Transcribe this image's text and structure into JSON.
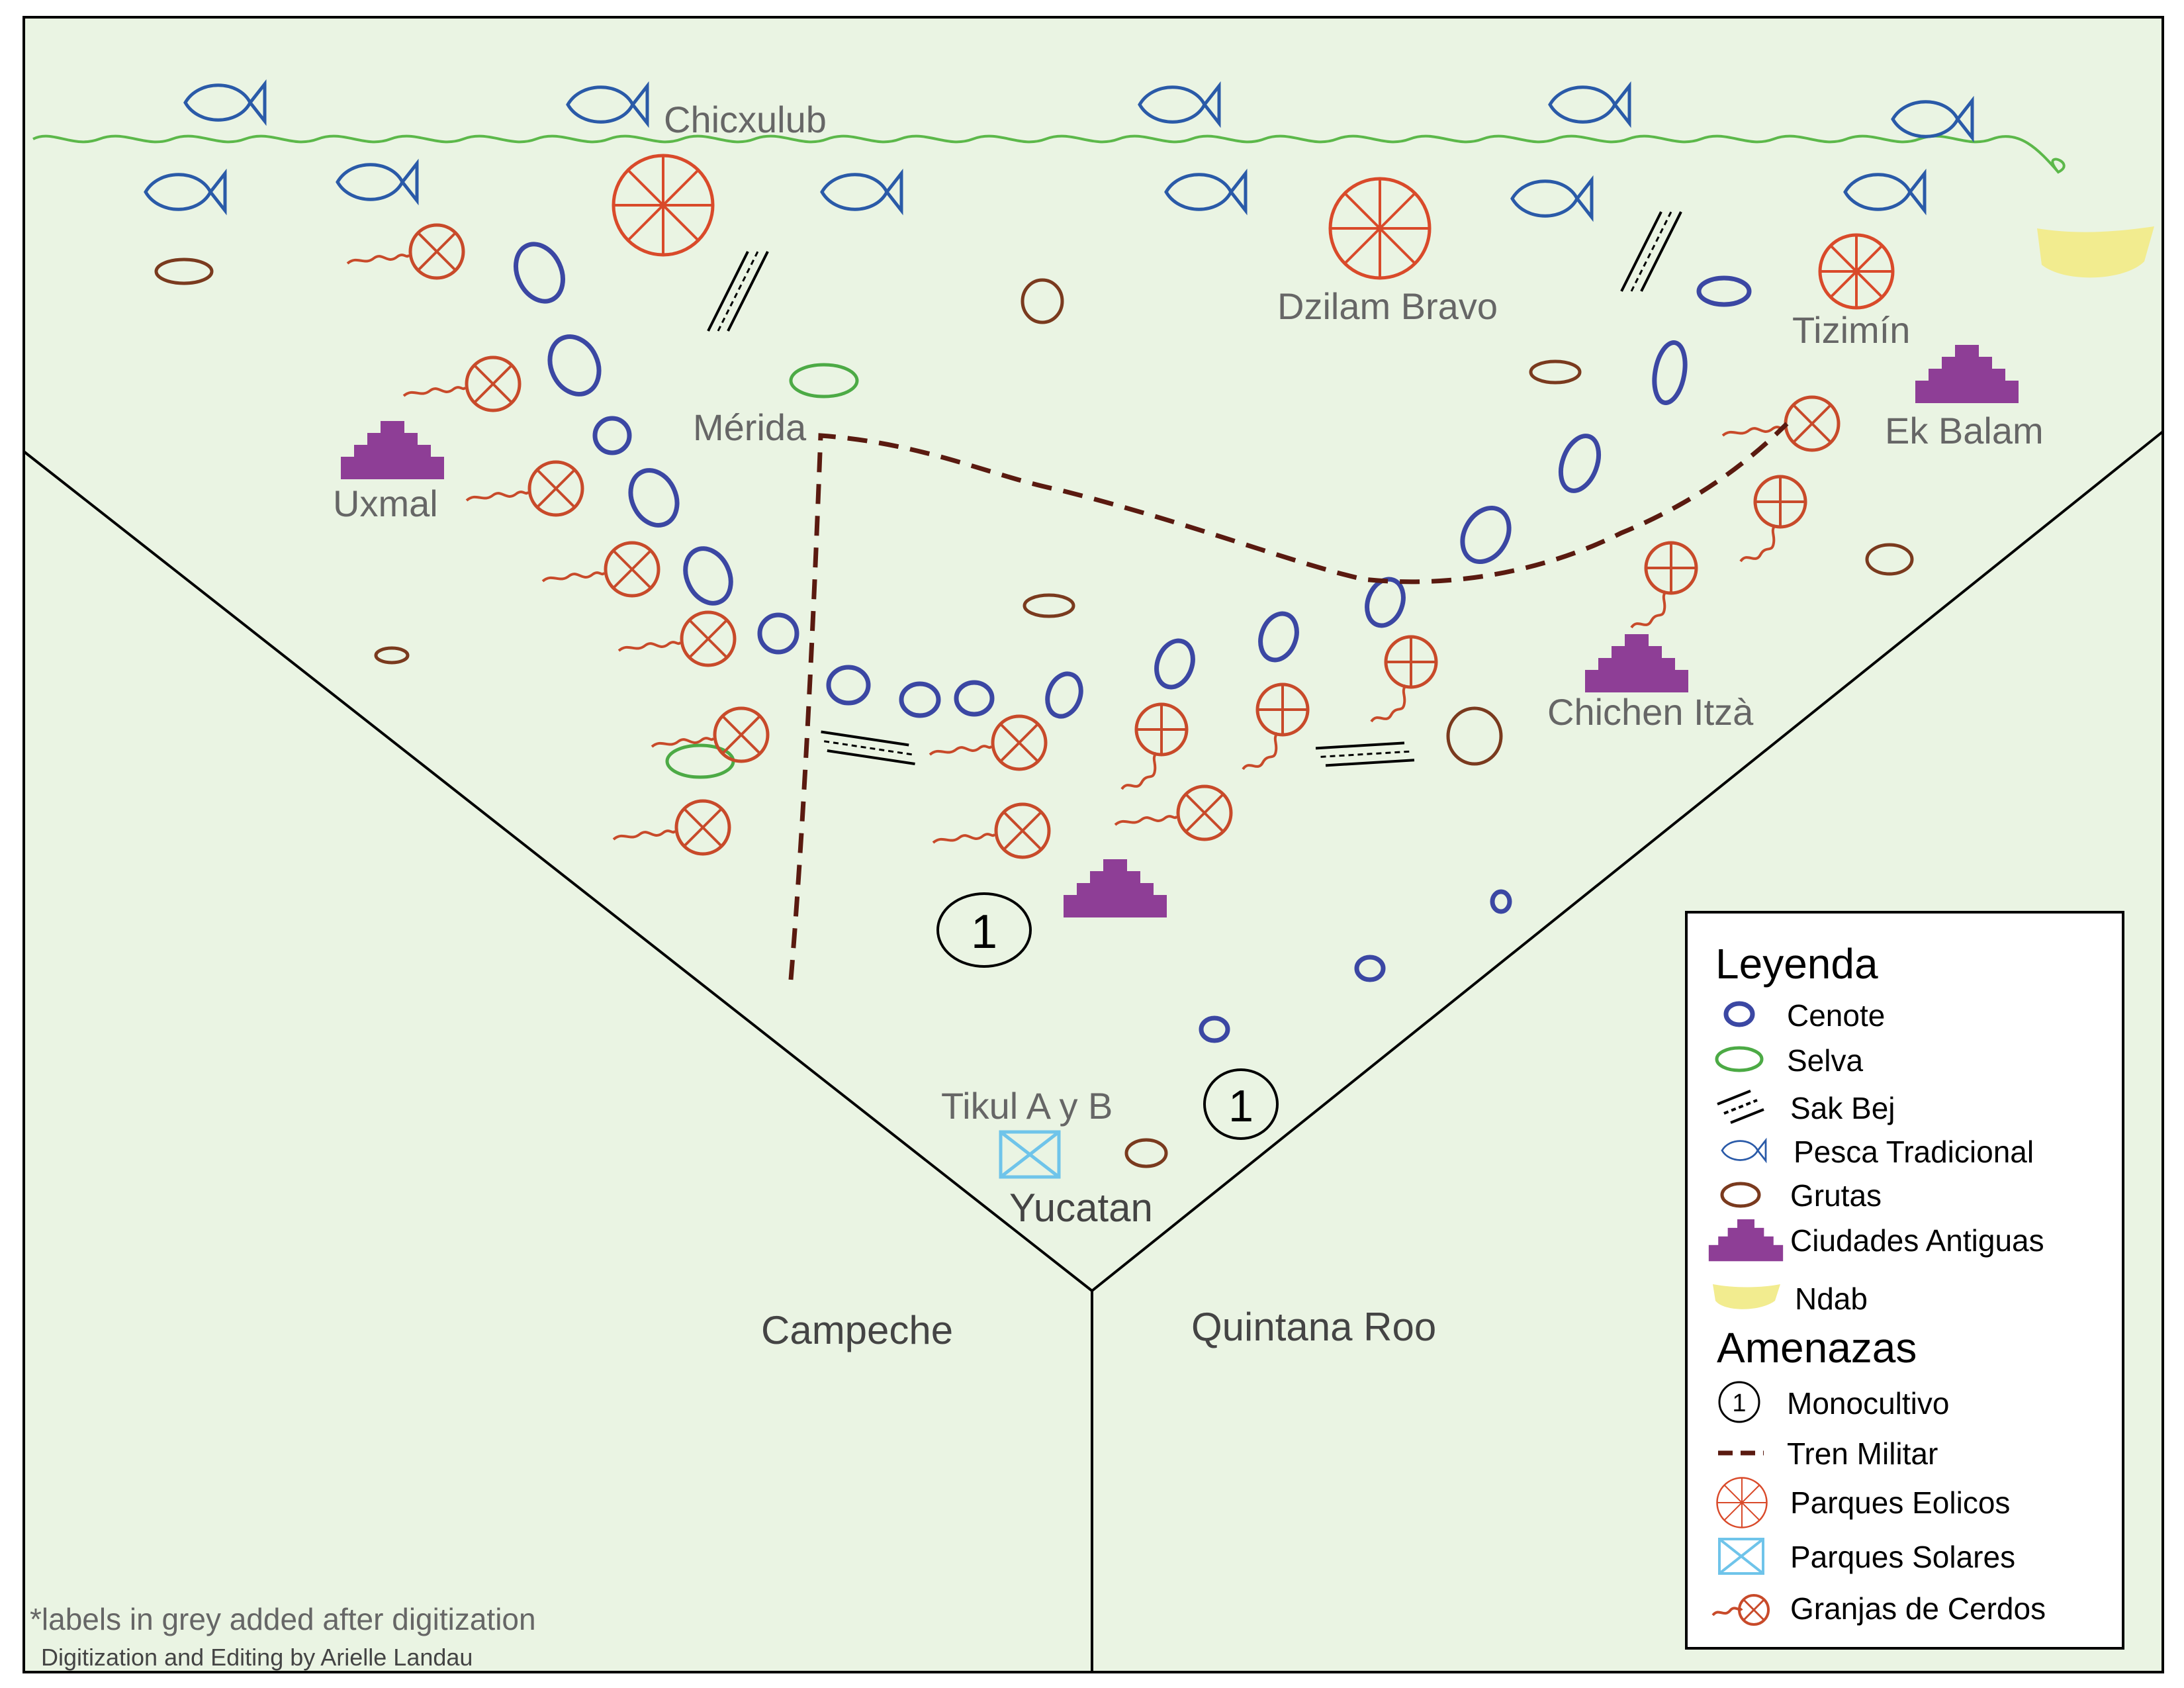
{
  "colors": {
    "land": "#eaf4e3",
    "border": "#000000",
    "coast": "#5cb84a",
    "cenote": "#3b47a3",
    "selva": "#4caa45",
    "sakbej": "#000000",
    "fish": "#2a5aa8",
    "gruta": "#7a3a1e",
    "ciudad": "#8e3e96",
    "ndab": "#f2ec8f",
    "wind": "#d94a2a",
    "solar": "#6fc4ea",
    "pig": "#c84a2a",
    "train": "#5a1a10",
    "grey_label": "#666666"
  },
  "places": {
    "chicxulub": "Chicxulub",
    "dzilam_bravo": "Dzilam Bravo",
    "tizimin": "Tizimín",
    "ek_balam": "Ek Balam",
    "merida": "Mérida",
    "uxmal": "Uxmal",
    "chichen_itza": "Chichen Itzà",
    "tikul": "Tikul A y B",
    "yucatan": "Yucatan",
    "campeche": "Campeche",
    "quintana_roo": "Quintana Roo"
  },
  "threat_marks": {
    "monocultivo_mark": "1"
  },
  "legend": {
    "title": "Leyenda",
    "items": {
      "cenote": "Cenote",
      "selva": "Selva",
      "sak_bej": "Sak Bej",
      "pesca": "Pesca Tradicional",
      "grutas": "Grutas",
      "ciudades": "Ciudades Antiguas",
      "ndab": "Ndab"
    },
    "threats_title": "Amenazas",
    "threats": {
      "monocultivo": "Monocultivo",
      "tren": "Tren Militar",
      "eolicos": "Parques Eolicos",
      "solares": "Parques Solares",
      "cerdos": "Granjas de Cerdos"
    }
  },
  "notes": {
    "grey_note": "*labels in grey added after digitization",
    "credit": "Digitization and Editing by Arielle Landau"
  }
}
